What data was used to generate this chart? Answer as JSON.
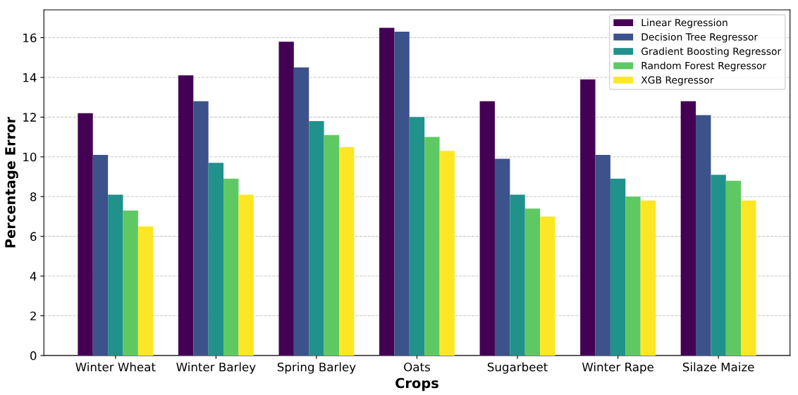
{
  "chart_data": {
    "type": "bar",
    "xlabel": "Crops",
    "ylabel": "Percentage Error",
    "categories": [
      "Winter Wheat",
      "Winter Barley",
      "Spring Barley",
      "Oats",
      "Sugarbeet",
      "Winter Rape",
      "Silaze Maize"
    ],
    "series": [
      {
        "name": "Linear Regression",
        "color": "#440154",
        "values": [
          12.2,
          14.1,
          15.8,
          16.5,
          12.8,
          13.9,
          12.8
        ]
      },
      {
        "name": "Decision Tree Regressor",
        "color": "#3b528b",
        "values": [
          10.1,
          12.8,
          14.5,
          16.3,
          9.9,
          10.1,
          12.1
        ]
      },
      {
        "name": "Gradient Boosting Regressor",
        "color": "#21918c",
        "values": [
          8.1,
          9.7,
          11.8,
          12.0,
          8.1,
          8.9,
          9.1
        ]
      },
      {
        "name": "Random Forest Regressor",
        "color": "#5ec962",
        "values": [
          7.3,
          8.9,
          11.1,
          11.0,
          7.4,
          8.0,
          8.8
        ]
      },
      {
        "name": "XGB Regressor",
        "color": "#fde725",
        "values": [
          6.5,
          8.1,
          10.5,
          10.3,
          7.0,
          7.8,
          7.8
        ]
      }
    ],
    "ylim": [
      0,
      17.4
    ],
    "yticks": [
      0,
      2,
      4,
      6,
      8,
      10,
      12,
      14,
      16
    ],
    "grid": "y",
    "legend": "top right"
  }
}
